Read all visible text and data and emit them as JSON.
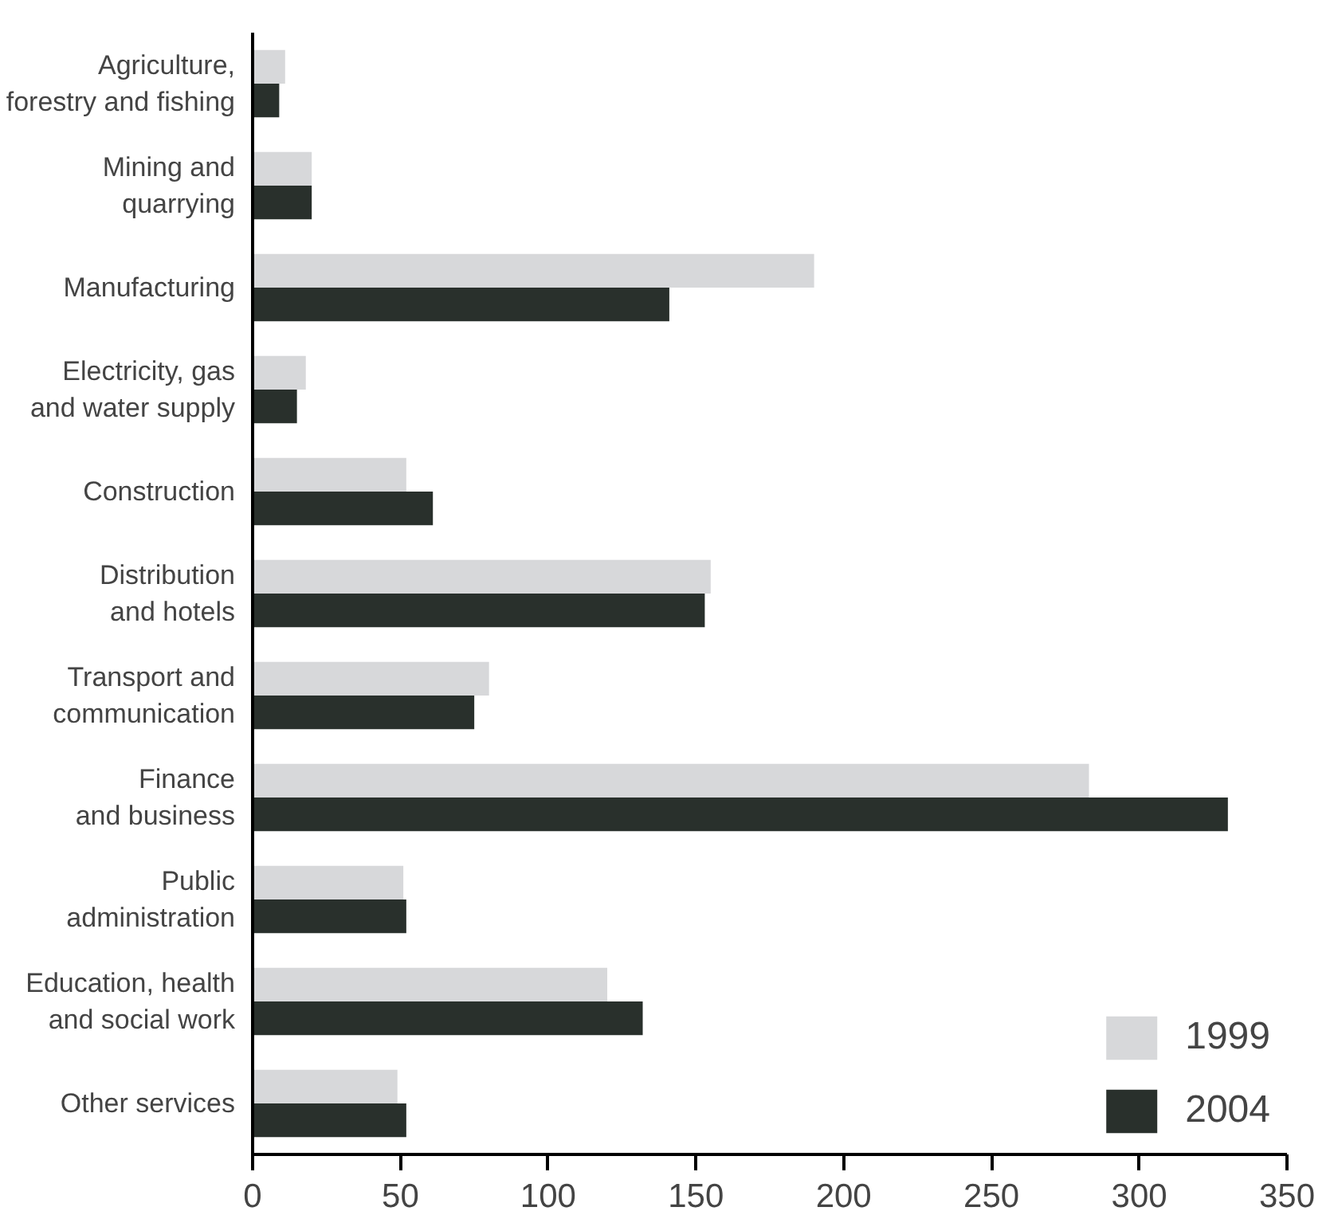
{
  "chart_data": {
    "type": "bar",
    "orientation": "horizontal",
    "categories": [
      "Agriculture,\nforestry and fishing",
      "Mining and\nquarrying",
      "Manufacturing",
      "Electricity, gas\nand water supply",
      "Construction",
      "Distribution\nand hotels",
      "Transport and\ncommunication",
      "Finance\nand business",
      "Public\nadministration",
      "Education, health\nand social work",
      "Other services"
    ],
    "series": [
      {
        "name": "1999",
        "color": "#d7d8da",
        "values": [
          11,
          20,
          190,
          18,
          52,
          155,
          80,
          283,
          51,
          120,
          49
        ]
      },
      {
        "name": "2004",
        "color": "#29302c",
        "values": [
          9,
          20,
          141,
          15,
          61,
          153,
          75,
          330,
          52,
          132,
          52
        ]
      }
    ],
    "xlim": [
      0,
      350
    ],
    "xticks": [
      0,
      50,
      100,
      150,
      200,
      250,
      300,
      350
    ],
    "grid": false,
    "legend": "bottom right"
  }
}
